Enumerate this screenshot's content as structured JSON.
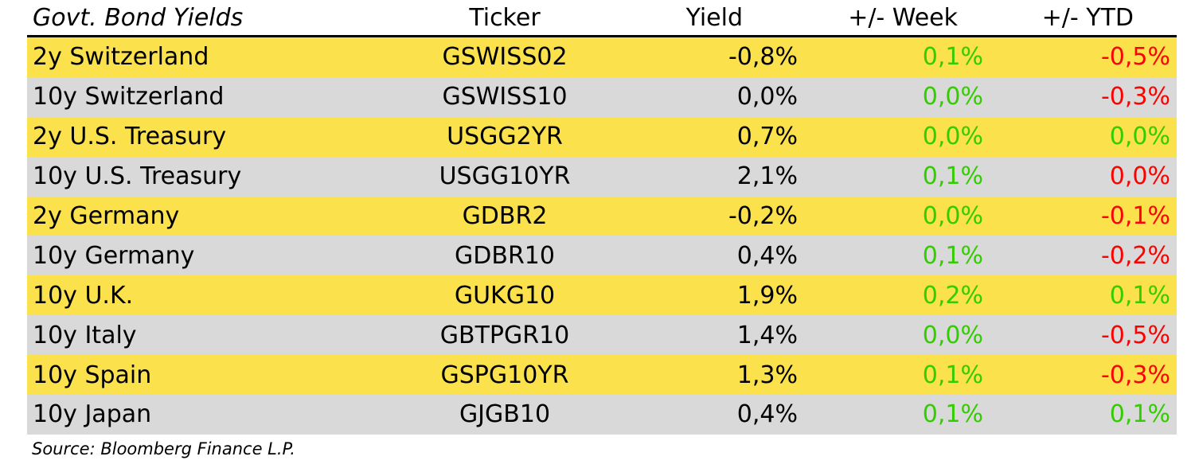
{
  "colors": {
    "row_a": "#fbe14b",
    "row_b": "#d9d9d9",
    "positive": "#33cc00",
    "negative": "#ff0000"
  },
  "chart_data": {
    "type": "table",
    "columns": [
      "Govt. Bond Yields",
      "Ticker",
      "Yield",
      "+/- Week",
      "+/- YTD"
    ],
    "rows": [
      {
        "name": "2y Switzerland",
        "ticker": "GSWISS02",
        "yield": "-0,8%",
        "week": "0,1%",
        "ytd": "-0,5%",
        "ytd_sign": "neg"
      },
      {
        "name": "10y Switzerland",
        "ticker": "GSWISS10",
        "yield": "0,0%",
        "week": "0,0%",
        "ytd": "-0,3%",
        "ytd_sign": "neg"
      },
      {
        "name": "2y U.S. Treasury",
        "ticker": "USGG2YR",
        "yield": "0,7%",
        "week": "0,0%",
        "ytd": "0,0%",
        "ytd_sign": "pos"
      },
      {
        "name": "10y U.S. Treasury",
        "ticker": "USGG10YR",
        "yield": "2,1%",
        "week": "0,1%",
        "ytd": "0,0%",
        "ytd_sign": "neg"
      },
      {
        "name": "2y Germany",
        "ticker": "GDBR2",
        "yield": "-0,2%",
        "week": "0,0%",
        "ytd": "-0,1%",
        "ytd_sign": "neg"
      },
      {
        "name": "10y Germany",
        "ticker": "GDBR10",
        "yield": "0,4%",
        "week": "0,1%",
        "ytd": "-0,2%",
        "ytd_sign": "neg"
      },
      {
        "name": "10y U.K.",
        "ticker": "GUKG10",
        "yield": "1,9%",
        "week": "0,2%",
        "ytd": "0,1%",
        "ytd_sign": "pos"
      },
      {
        "name": "10y Italy",
        "ticker": "GBTPGR10",
        "yield": "1,4%",
        "week": "0,0%",
        "ytd": "-0,5%",
        "ytd_sign": "neg"
      },
      {
        "name": "10y Spain",
        "ticker": "GSPG10YR",
        "yield": "1,3%",
        "week": "0,1%",
        "ytd": "-0,3%",
        "ytd_sign": "neg"
      },
      {
        "name": "10y Japan",
        "ticker": "GJGB10",
        "yield": "0,4%",
        "week": "0,1%",
        "ytd": "0,1%",
        "ytd_sign": "pos"
      }
    ],
    "source": "Source: Bloomberg Finance L.P."
  }
}
